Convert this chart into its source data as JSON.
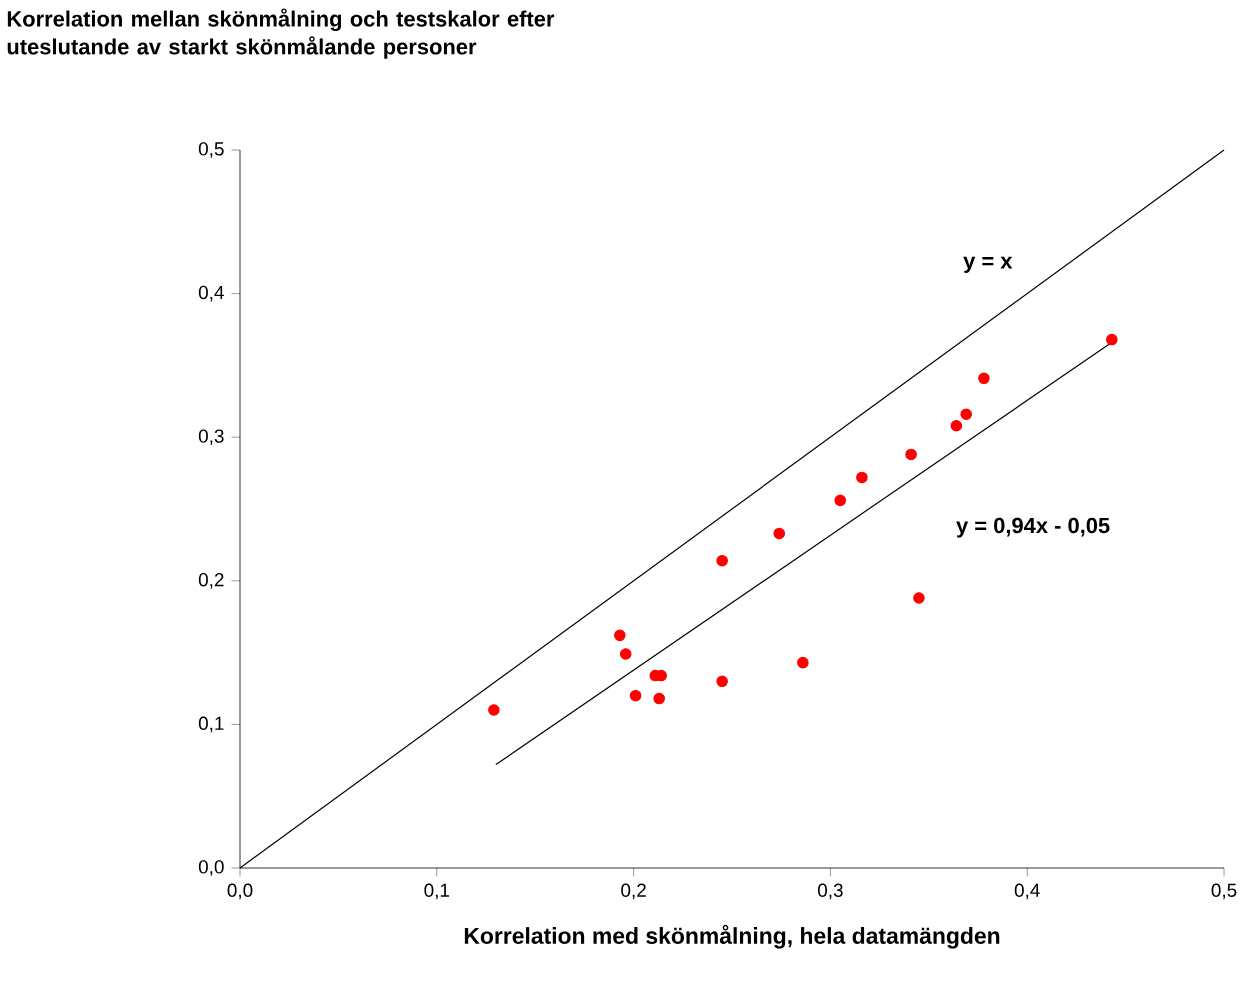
{
  "chart_data": {
    "type": "scatter",
    "title": "Korrelation mellan skönmålning och testskalor efter uteslutande av starkt skönmålande personer",
    "xlabel": "Korrelation med skönmålning, hela datamängden",
    "xlim": [
      0,
      0.5
    ],
    "ylim": [
      0,
      0.5
    ],
    "xticks": [
      {
        "value": 0,
        "label": "0,0"
      },
      {
        "value": 0.1,
        "label": "0,1"
      },
      {
        "value": 0.2,
        "label": "0,2"
      },
      {
        "value": 0.3,
        "label": "0,3"
      },
      {
        "value": 0.4,
        "label": "0,4"
      },
      {
        "value": 0.5,
        "label": "0,5"
      }
    ],
    "yticks": [
      {
        "value": 0,
        "label": "0,0"
      },
      {
        "value": 0.1,
        "label": "0,1"
      },
      {
        "value": 0.2,
        "label": "0,2"
      },
      {
        "value": 0.3,
        "label": "0,3"
      },
      {
        "value": 0.4,
        "label": "0,4"
      },
      {
        "value": 0.5,
        "label": "0,5"
      }
    ],
    "marker": "circle",
    "grid": false,
    "series": [
      {
        "color": "#ff0000",
        "x": [
          0.129,
          0.193,
          0.196,
          0.201,
          0.211,
          0.214,
          0.213,
          0.245,
          0.245,
          0.274,
          0.286,
          0.305,
          0.316,
          0.341,
          0.345,
          0.364,
          0.369,
          0.378,
          0.443
        ],
        "values": [
          0.11,
          0.162,
          0.149,
          0.12,
          0.134,
          0.134,
          0.118,
          0.214,
          0.13,
          0.233,
          0.143,
          0.256,
          0.272,
          0.288,
          0.188,
          0.308,
          0.316,
          0.341,
          0.368
        ]
      },
      {
        "type": "line",
        "color": "#000000",
        "line_style": "solid",
        "marker": "none",
        "x": [
          0,
          0.5
        ],
        "values": [
          0,
          0.5
        ]
      },
      {
        "type": "line",
        "color": "#000000",
        "line_style": "solid",
        "marker": "none",
        "x": [
          0.13,
          0.444
        ],
        "values": [
          0.072,
          0.367
        ]
      }
    ],
    "annotations": [
      "y = x",
      "y = 0,94x - 0,05"
    ]
  }
}
